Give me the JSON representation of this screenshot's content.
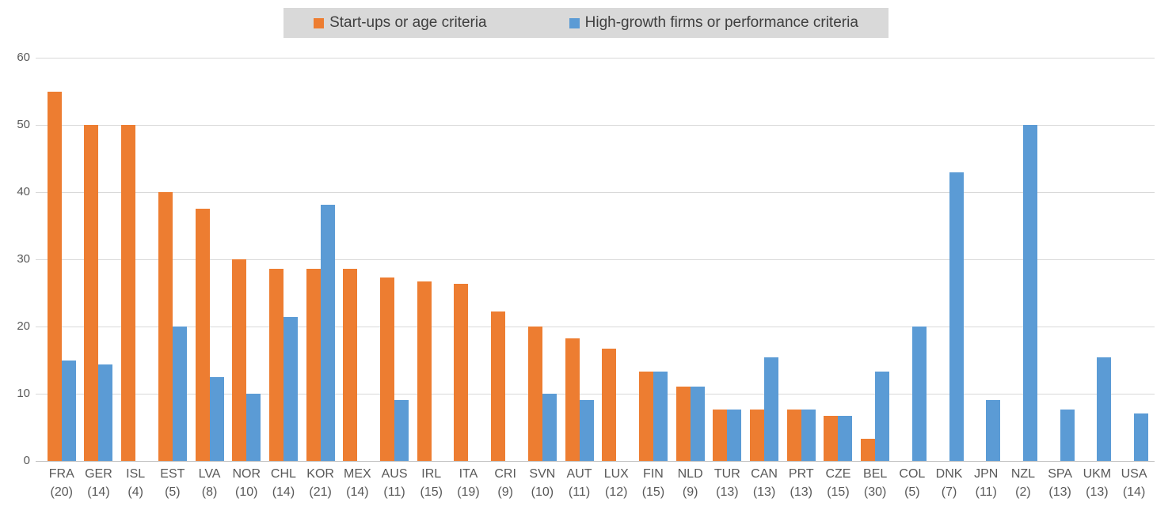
{
  "chart_data": {
    "type": "bar",
    "title": "",
    "xlabel": "",
    "ylabel": "",
    "ylim": [
      0,
      60
    ],
    "yticks": [
      0,
      10,
      20,
      30,
      40,
      50,
      60
    ],
    "grid": true,
    "legend_position": "top-center",
    "categories": [
      "FRA",
      "GER",
      "ISL",
      "EST",
      "LVA",
      "NOR",
      "CHL",
      "KOR",
      "MEX",
      "AUS",
      "IRL",
      "ITA",
      "CRI",
      "SVN",
      "AUT",
      "LUX",
      "FIN",
      "NLD",
      "TUR",
      "CAN",
      "PRT",
      "CZE",
      "BEL",
      "COL",
      "DNK",
      "JPN",
      "NZL",
      "SPA",
      "UKM",
      "USA"
    ],
    "category_sublabels": [
      "(20)",
      "(14)",
      "(4)",
      "(5)",
      "(8)",
      "(10)",
      "(14)",
      "(21)",
      "(14)",
      "(11)",
      "(15)",
      "(19)",
      "(9)",
      "(10)",
      "(11)",
      "(12)",
      "(15)",
      "(9)",
      "(13)",
      "(13)",
      "(13)",
      "(15)",
      "(30)",
      "(5)",
      "(7)",
      "(11)",
      "(2)",
      "(13)",
      "(13)",
      "(14)"
    ],
    "series": [
      {
        "name": "Start-ups or age criteria",
        "color": "#ED7D31",
        "values": [
          55,
          50,
          50,
          40,
          37.5,
          30,
          28.6,
          28.6,
          28.6,
          27.3,
          26.7,
          26.3,
          22.2,
          20,
          18.2,
          16.7,
          13.3,
          11.1,
          7.7,
          7.7,
          7.7,
          6.7,
          3.3,
          null,
          null,
          null,
          null,
          null,
          null,
          null
        ]
      },
      {
        "name": "High-growth firms or performance criteria",
        "color": "#5B9BD5",
        "values": [
          15,
          14.3,
          null,
          20,
          12.5,
          10,
          21.4,
          38.1,
          null,
          9.1,
          null,
          null,
          null,
          10,
          9.1,
          null,
          13.3,
          11.1,
          7.7,
          15.4,
          7.7,
          6.7,
          13.3,
          20,
          42.9,
          9.1,
          50,
          7.7,
          15.4,
          7.1
        ]
      }
    ]
  },
  "colors": {
    "gridline": "#D9D9D9",
    "axis_line": "#BFBFBF",
    "tick_text": "#595959",
    "legend_background": "#D9D9D9",
    "legend_text": "#404040"
  }
}
